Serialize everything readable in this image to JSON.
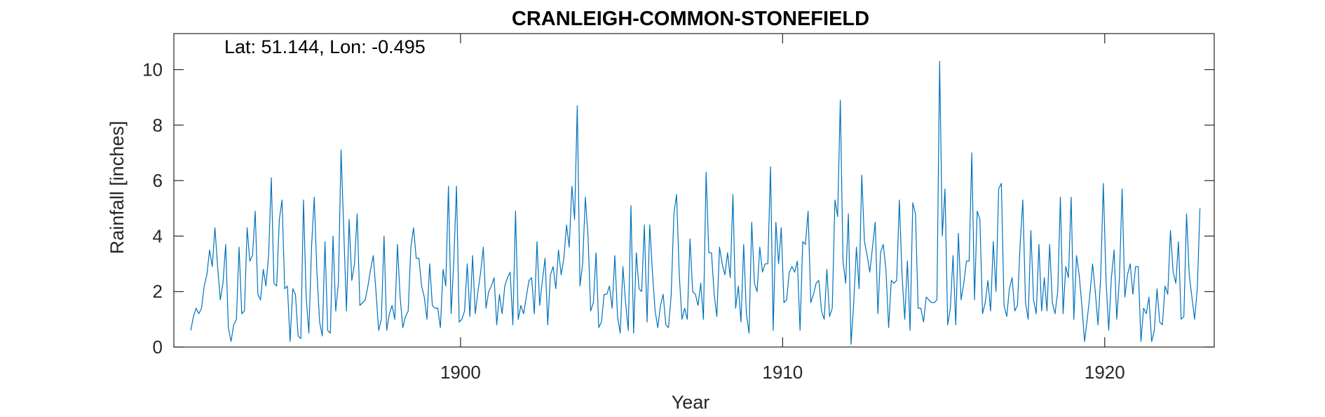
{
  "chart_data": {
    "type": "line",
    "title": "CRANLEIGH-COMMON-STONEFIELD",
    "annotation": "Lat: 51.144, Lon: -0.495",
    "xlabel": "Year",
    "ylabel": "Rainfall [inches]",
    "xlim": [
      1891.1,
      1923.4
    ],
    "ylim": [
      0,
      11.3
    ],
    "xticks": [
      1900,
      1910,
      1920
    ],
    "xtick_labels": [
      "1900",
      "1910",
      "1920"
    ],
    "yticks": [
      0,
      2,
      4,
      6,
      8,
      10
    ],
    "ytick_labels": [
      "0",
      "2",
      "4",
      "6",
      "8",
      "10"
    ],
    "grid": false,
    "line_color": "#0072BD",
    "series": [
      {
        "x_start": 1891.625,
        "x_step": 0.08333,
        "values": [
          0.6,
          1.1,
          1.4,
          1.2,
          1.4,
          2.2,
          2.6,
          3.5,
          2.9,
          4.3,
          2.9,
          1.7,
          2.3,
          3.7,
          0.7,
          0.2,
          0.8,
          1.0,
          3.6,
          1.2,
          1.3,
          4.3,
          3.1,
          3.3,
          4.9,
          1.9,
          1.7,
          2.8,
          2.2,
          3.3,
          6.1,
          2.3,
          2.2,
          4.6,
          5.3,
          2.1,
          2.2,
          0.2,
          2.1,
          1.9,
          0.4,
          0.3,
          5.3,
          1.8,
          0.5,
          3.6,
          5.4,
          2.7,
          0.9,
          0.4,
          3.8,
          0.6,
          0.5,
          4.0,
          1.3,
          2.3,
          7.1,
          4.2,
          1.3,
          4.6,
          2.4,
          3.0,
          4.8,
          1.5,
          1.6,
          1.7,
          2.2,
          2.8,
          3.3,
          2.0,
          0.6,
          1.0,
          4.0,
          0.6,
          1.2,
          1.5,
          1.0,
          3.7,
          1.8,
          0.7,
          1.1,
          1.3,
          3.6,
          4.3,
          3.2,
          3.2,
          2.2,
          1.8,
          1.0,
          3.0,
          1.5,
          1.4,
          1.4,
          0.7,
          2.8,
          2.2,
          5.8,
          1.2,
          3.1,
          5.8,
          0.9,
          1.0,
          1.3,
          3.0,
          1.1,
          3.3,
          1.2,
          2.0,
          2.7,
          3.6,
          1.4,
          2.0,
          2.2,
          2.5,
          0.8,
          1.9,
          1.2,
          2.2,
          2.5,
          2.7,
          0.8,
          4.9,
          1.0,
          1.5,
          1.2,
          1.8,
          2.4,
          2.5,
          1.2,
          3.8,
          1.5,
          2.4,
          3.2,
          0.8,
          2.6,
          2.9,
          2.1,
          3.5,
          2.6,
          3.2,
          4.4,
          3.6,
          5.8,
          4.6,
          8.7,
          2.2,
          3.0,
          5.4,
          4.0,
          1.3,
          1.6,
          3.4,
          0.7,
          0.9,
          1.9,
          1.9,
          2.2,
          1.4,
          3.3,
          1.1,
          0.5,
          2.9,
          1.6,
          0.6,
          5.1,
          0.5,
          3.4,
          2.1,
          2.0,
          4.4,
          0.9,
          4.4,
          2.7,
          1.3,
          0.7,
          1.5,
          1.9,
          0.8,
          0.7,
          1.9,
          4.8,
          5.5,
          2.6,
          1.0,
          1.4,
          1.0,
          3.9,
          2.0,
          1.9,
          1.5,
          2.3,
          1.0,
          6.3,
          3.4,
          3.4,
          1.9,
          1.1,
          3.6,
          3.0,
          2.6,
          3.4,
          2.5,
          5.5,
          1.4,
          2.2,
          0.9,
          3.7,
          1.2,
          0.5,
          4.5,
          2.3,
          2.0,
          3.6,
          2.7,
          3.0,
          3.0,
          6.5,
          0.6,
          4.5,
          3.0,
          4.3,
          1.6,
          1.7,
          2.7,
          2.9,
          2.7,
          3.1,
          0.6,
          3.8,
          3.7,
          4.9,
          1.6,
          1.9,
          2.3,
          2.4,
          1.3,
          1.0,
          2.8,
          1.1,
          1.4,
          5.3,
          4.7,
          8.9,
          3.1,
          2.3,
          4.8,
          0.1,
          1.6,
          3.6,
          2.1,
          6.2,
          3.8,
          3.3,
          2.7,
          3.6,
          4.5,
          1.2,
          3.4,
          3.7,
          2.8,
          0.7,
          2.4,
          2.3,
          2.4,
          5.3,
          2.6,
          1.0,
          3.1,
          0.6,
          5.2,
          4.8,
          1.4,
          1.4,
          0.9,
          1.8,
          1.7,
          1.6,
          1.6,
          1.7,
          10.3,
          4.0,
          5.7,
          0.8,
          1.4,
          3.3,
          0.8,
          4.1,
          1.7,
          2.3,
          3.1,
          3.1,
          7.0,
          1.7,
          4.9,
          4.6,
          1.2,
          1.6,
          2.4,
          1.3,
          3.8,
          2.0,
          5.7,
          5.9,
          1.5,
          1.1,
          2.1,
          2.5,
          1.3,
          1.5,
          3.7,
          5.3,
          1.6,
          1.0,
          4.2,
          1.7,
          1.2,
          3.7,
          1.3,
          2.5,
          1.3,
          3.7,
          1.6,
          1.2,
          2.0,
          5.4,
          1.2,
          2.9,
          2.5,
          5.4,
          1.0,
          3.3,
          2.6,
          1.5,
          0.2,
          1.0,
          1.9,
          3.0,
          2.0,
          0.8,
          2.5,
          5.9,
          2.4,
          0.6,
          2.5,
          3.5,
          1.0,
          2.5,
          5.7,
          1.8,
          2.6,
          3.0,
          1.9,
          2.9,
          2.9,
          0.2,
          1.4,
          1.2,
          1.8,
          0.2,
          0.6,
          2.1,
          0.9,
          0.8,
          2.2,
          1.9,
          4.2,
          2.7,
          2.3,
          3.8,
          1.0,
          1.1,
          4.8,
          2.6,
          1.8,
          1.0,
          2.1,
          5.0
        ]
      }
    ]
  }
}
